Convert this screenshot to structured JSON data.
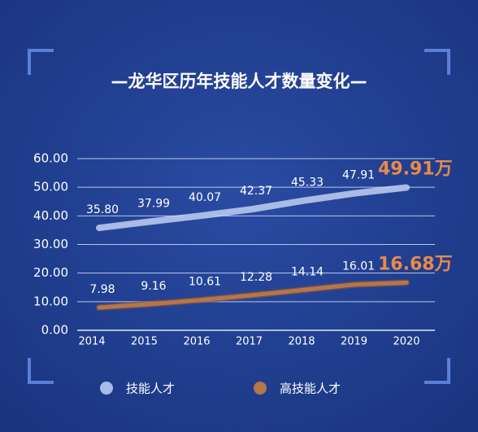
{
  "chart_data": {
    "type": "line",
    "title": "—龙华区历年技能人才数量变化—",
    "categories": [
      "2014",
      "2015",
      "2016",
      "2017",
      "2018",
      "2019",
      "2020"
    ],
    "series": [
      {
        "name": "技能人才",
        "color": "#a9bbe8",
        "values": [
          35.8,
          37.99,
          40.07,
          42.37,
          45.33,
          47.91,
          49.91
        ],
        "value_labels": [
          "35.80",
          "37.99",
          "40.07",
          "42.37",
          "45.33",
          "47.91",
          "49.91万"
        ]
      },
      {
        "name": "高技能人才",
        "color": "#b5764b",
        "values": [
          7.98,
          9.16,
          10.61,
          12.28,
          14.14,
          16.01,
          16.68
        ],
        "value_labels": [
          "7.98",
          "9.16",
          "10.61",
          "12.28",
          "14.14",
          "16.01",
          "16.68万"
        ]
      }
    ],
    "ylim": [
      0,
      60
    ],
    "yticks": [
      {
        "value": 0,
        "label": "0.00"
      },
      {
        "value": 10,
        "label": "10.00"
      },
      {
        "value": 20,
        "label": "20.00"
      },
      {
        "value": 30,
        "label": "30.00"
      },
      {
        "value": 40,
        "label": "40.00"
      },
      {
        "value": 50,
        "label": "50.00"
      },
      {
        "value": 60,
        "label": "60.00"
      }
    ],
    "grid": true,
    "legend": "bottom"
  }
}
